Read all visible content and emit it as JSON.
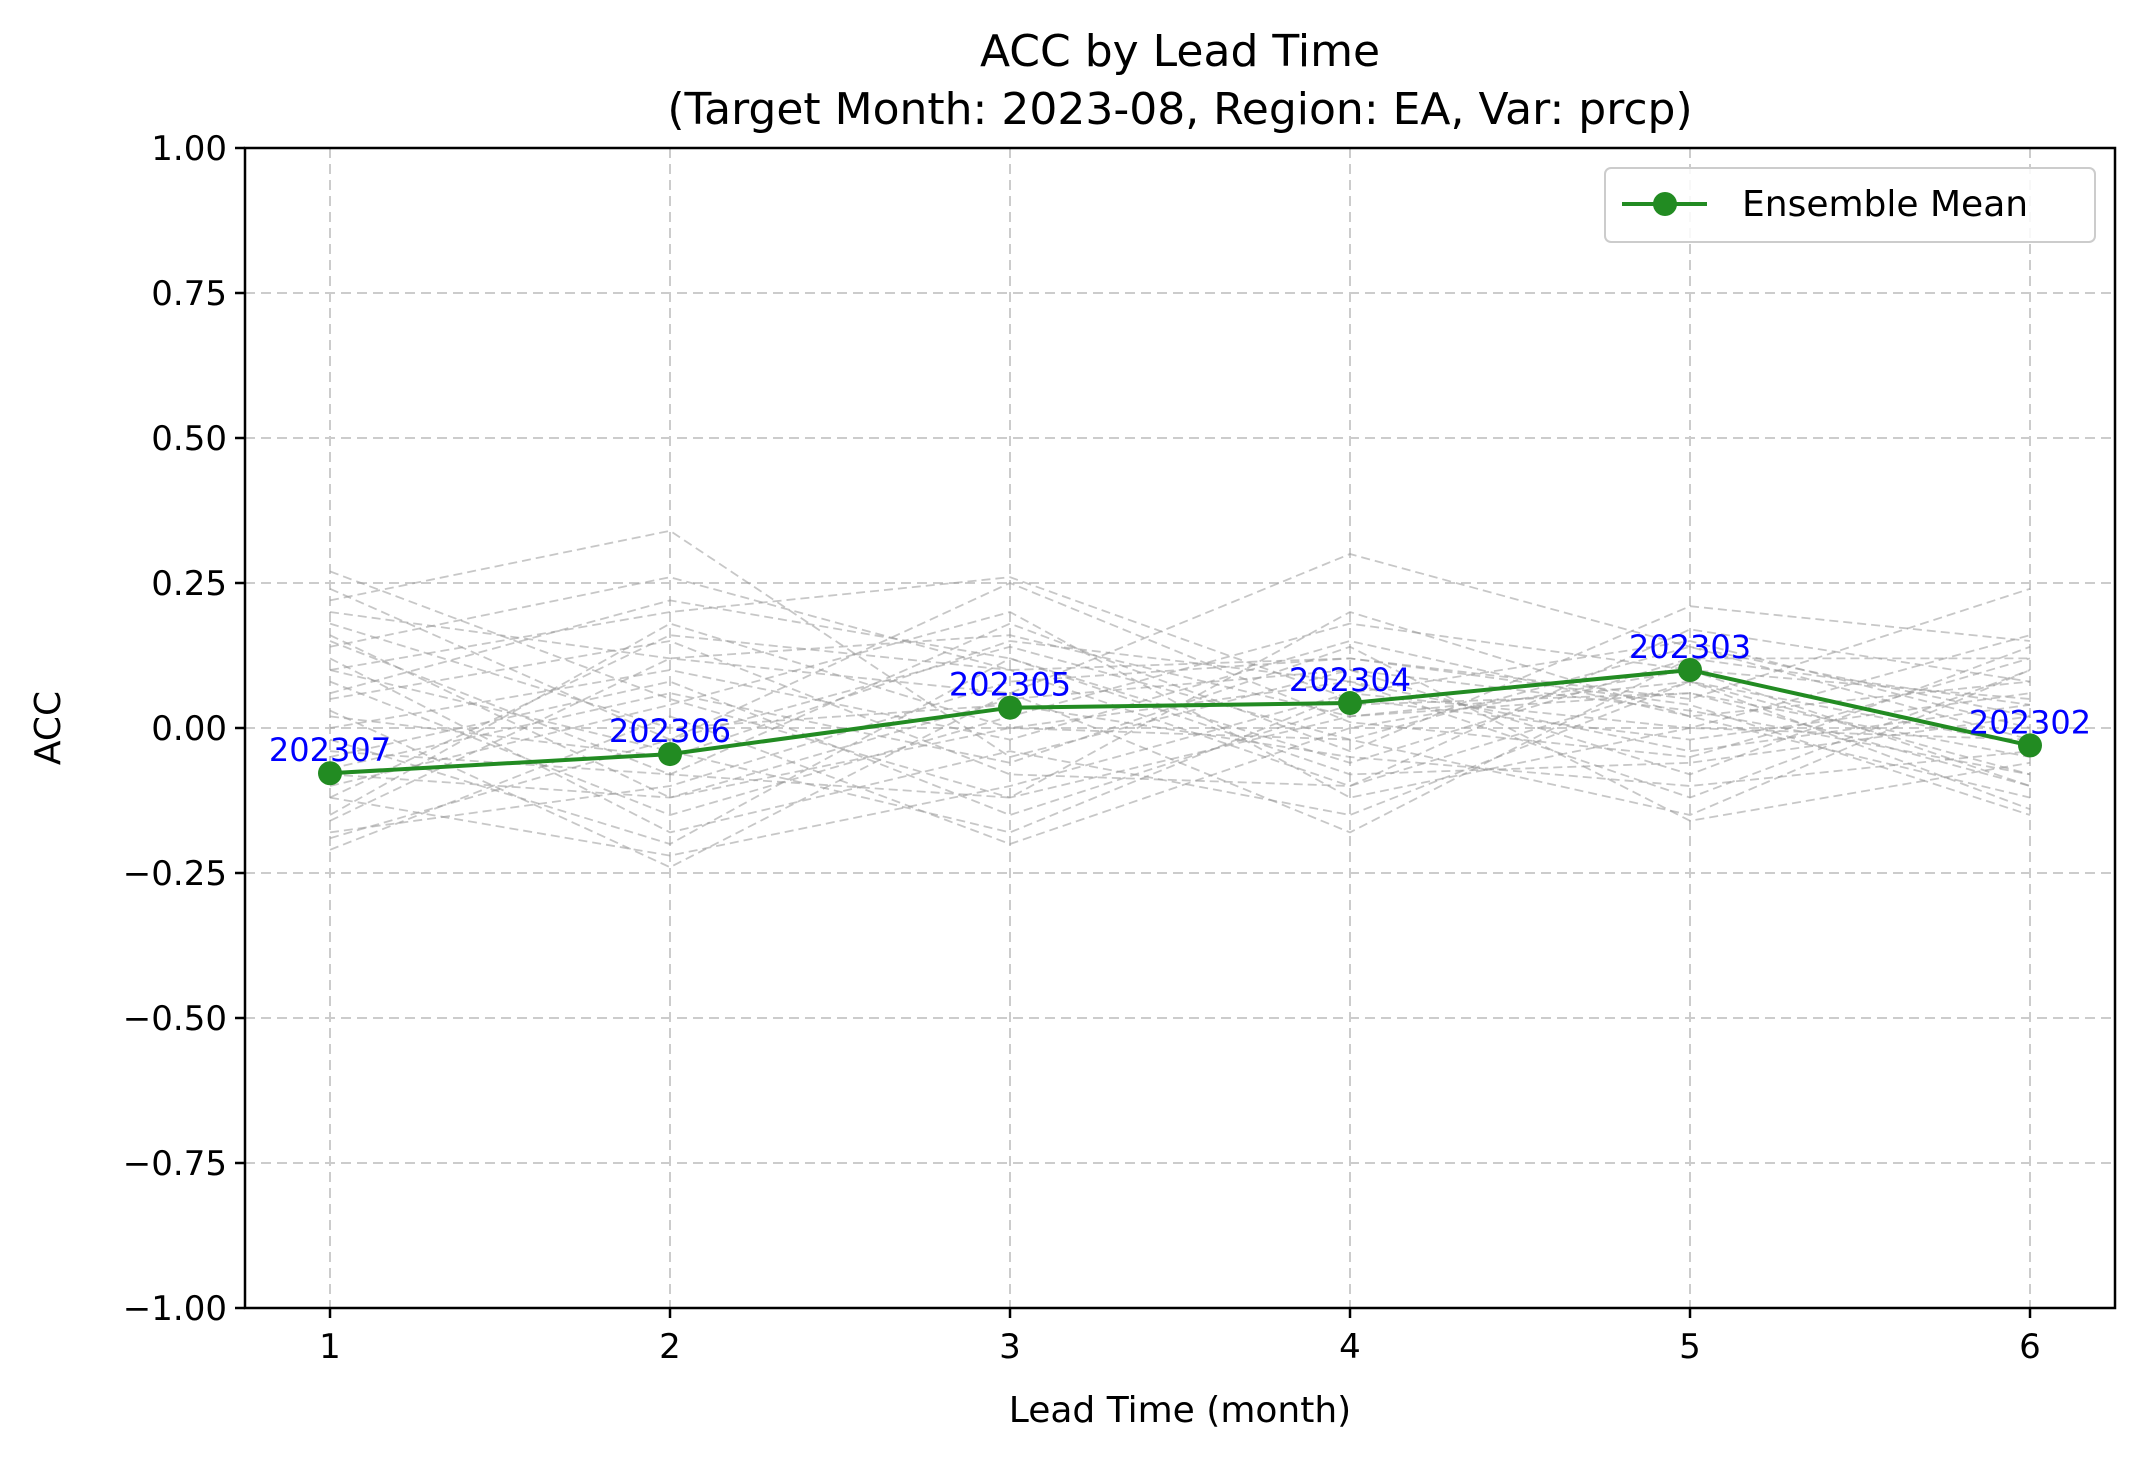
{
  "chart_data": {
    "type": "line",
    "title_line1": "ACC by Lead Time",
    "title_line2": "(Target Month: 2023-08, Region: EA, Var: prcp)",
    "xlabel": "Lead Time (month)",
    "ylabel": "ACC",
    "x": [
      1,
      2,
      3,
      4,
      5,
      6
    ],
    "xlim": [
      0.75,
      6.25
    ],
    "ylim": [
      -1.0,
      1.0
    ],
    "x_ticks": [
      "1",
      "2",
      "3",
      "4",
      "5",
      "6"
    ],
    "y_ticks": [
      {
        "value": 1.0,
        "label": "1.00"
      },
      {
        "value": 0.75,
        "label": "0.75"
      },
      {
        "value": 0.5,
        "label": "0.50"
      },
      {
        "value": 0.25,
        "label": "0.25"
      },
      {
        "value": 0.0,
        "label": "0.00"
      },
      {
        "value": -0.25,
        "label": "−0.25"
      },
      {
        "value": -0.5,
        "label": "−0.50"
      },
      {
        "value": -0.75,
        "label": "−0.75"
      },
      {
        "value": -1.0,
        "label": "−1.00"
      }
    ],
    "grid": true,
    "legend_position": "top-right",
    "series": [
      {
        "name": "Ensemble Mean",
        "color": "#228b22",
        "marker": "circle",
        "values": [
          -0.078,
          -0.045,
          0.035,
          0.043,
          0.1,
          -0.03
        ],
        "point_labels": [
          "202307",
          "202306",
          "202305",
          "202304",
          "202303",
          "202302"
        ]
      }
    ],
    "point_label_color": "#0000ff",
    "member_line_color": "#999999",
    "members": [
      [
        0.27,
        0.05,
        -0.12,
        0.02,
        0.08,
        -0.03
      ],
      [
        0.24,
        -0.02,
        0.25,
        0.01,
        -0.05,
        0.12
      ],
      [
        0.22,
        0.34,
        -0.05,
        0.1,
        0.03,
        -0.08
      ],
      [
        0.2,
        0.12,
        0.06,
        0.3,
        0.14,
        0.02
      ],
      [
        0.15,
        -0.08,
        0.18,
        -0.04,
        0.21,
        0.15
      ],
      [
        0.14,
        0.26,
        0.1,
        0.12,
        0.05,
        0.24
      ],
      [
        0.1,
        0.2,
        0.26,
        0.05,
        -0.02,
        0.06
      ],
      [
        0.08,
        -0.15,
        0.02,
        0.18,
        0.1,
        -0.1
      ],
      [
        0.05,
        0.15,
        -0.08,
        -0.1,
        0.17,
        0.08
      ],
      [
        0.02,
        -0.05,
        0.15,
        0.08,
        -0.12,
        0.1
      ],
      [
        0.0,
        0.1,
        -0.02,
        0.15,
        0.02,
        -0.12
      ],
      [
        -0.02,
        -0.2,
        0.12,
        -0.06,
        0.12,
        0.04
      ],
      [
        -0.05,
        0.08,
        -0.15,
        0.04,
        0.06,
        -0.05
      ],
      [
        -0.08,
        -0.12,
        0.05,
        0.1,
        -0.08,
        0.14
      ],
      [
        -0.1,
        0.04,
        0.2,
        -0.12,
        0.0,
        -0.02
      ],
      [
        -0.12,
        -0.22,
        -0.1,
        0.06,
        0.15,
        0.0
      ],
      [
        -0.15,
        0.18,
        0.0,
        -0.02,
        -0.15,
        0.1
      ],
      [
        -0.18,
        -0.1,
        0.08,
        0.12,
        0.04,
        -0.15
      ],
      [
        -0.21,
        0.02,
        -0.2,
        0.0,
        0.1,
        0.05
      ],
      [
        0.12,
        -0.18,
        -0.04,
        -0.15,
        0.08,
        -0.08
      ],
      [
        0.06,
        0.22,
        0.12,
        -0.08,
        -0.06,
        0.02
      ],
      [
        -0.04,
        -0.08,
        -0.12,
        0.2,
        0.02,
        0.08
      ],
      [
        0.18,
        0.0,
        0.04,
        -0.05,
        -0.1,
        -0.04
      ],
      [
        -0.16,
        0.12,
        0.16,
        0.02,
        0.06,
        -0.1
      ],
      [
        0.03,
        -0.24,
        0.06,
        -0.18,
        0.12,
        0.12
      ],
      [
        -0.07,
        0.06,
        -0.06,
        0.14,
        -0.16,
        -0.06
      ],
      [
        0.1,
        -0.04,
        -0.18,
        0.06,
        0.0,
        0.16
      ],
      [
        -0.12,
        0.16,
        0.1,
        -0.1,
        0.08,
        -0.14
      ],
      [
        0.16,
        -0.12,
        0.0,
        0.08,
        -0.04,
        0.04
      ],
      [
        -0.19,
        -0.02,
        0.14,
        -0.02,
        0.14,
        -0.02
      ]
    ]
  }
}
